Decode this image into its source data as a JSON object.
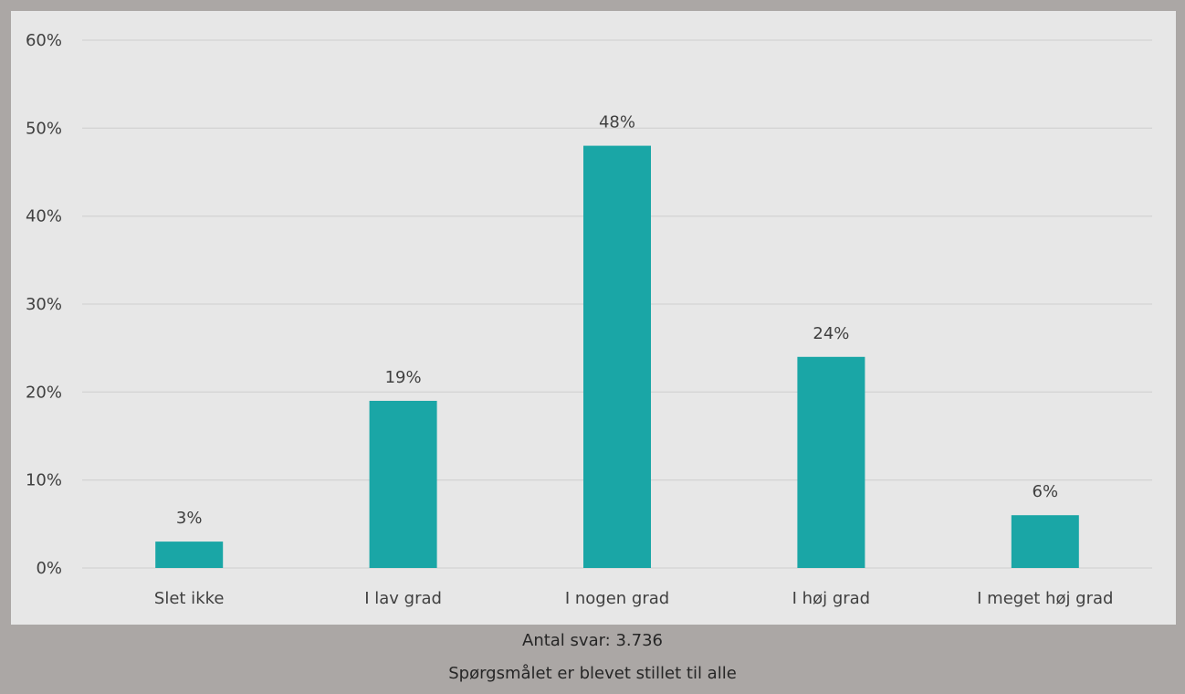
{
  "chart_data": {
    "type": "bar",
    "categories": [
      "Slet ikke",
      "I lav grad",
      "I nogen grad",
      "I høj grad",
      "I meget høj grad"
    ],
    "values": [
      3,
      19,
      48,
      24,
      6
    ],
    "data_labels": [
      "3%",
      "19%",
      "48%",
      "24%",
      "6%"
    ],
    "y_tick_labels": [
      "0%",
      "10%",
      "20%",
      "30%",
      "40%",
      "50%",
      "60%"
    ],
    "ylim": [
      0,
      60
    ],
    "y_tick_step": 10,
    "grid": true,
    "bar_color": "#1aa6a6",
    "grid_color": "#d4d4d4",
    "legend": "none"
  },
  "footer": {
    "answers": "Antal svar: 3.736",
    "note": "Spørgsmålet er blevet stillet til alle"
  }
}
